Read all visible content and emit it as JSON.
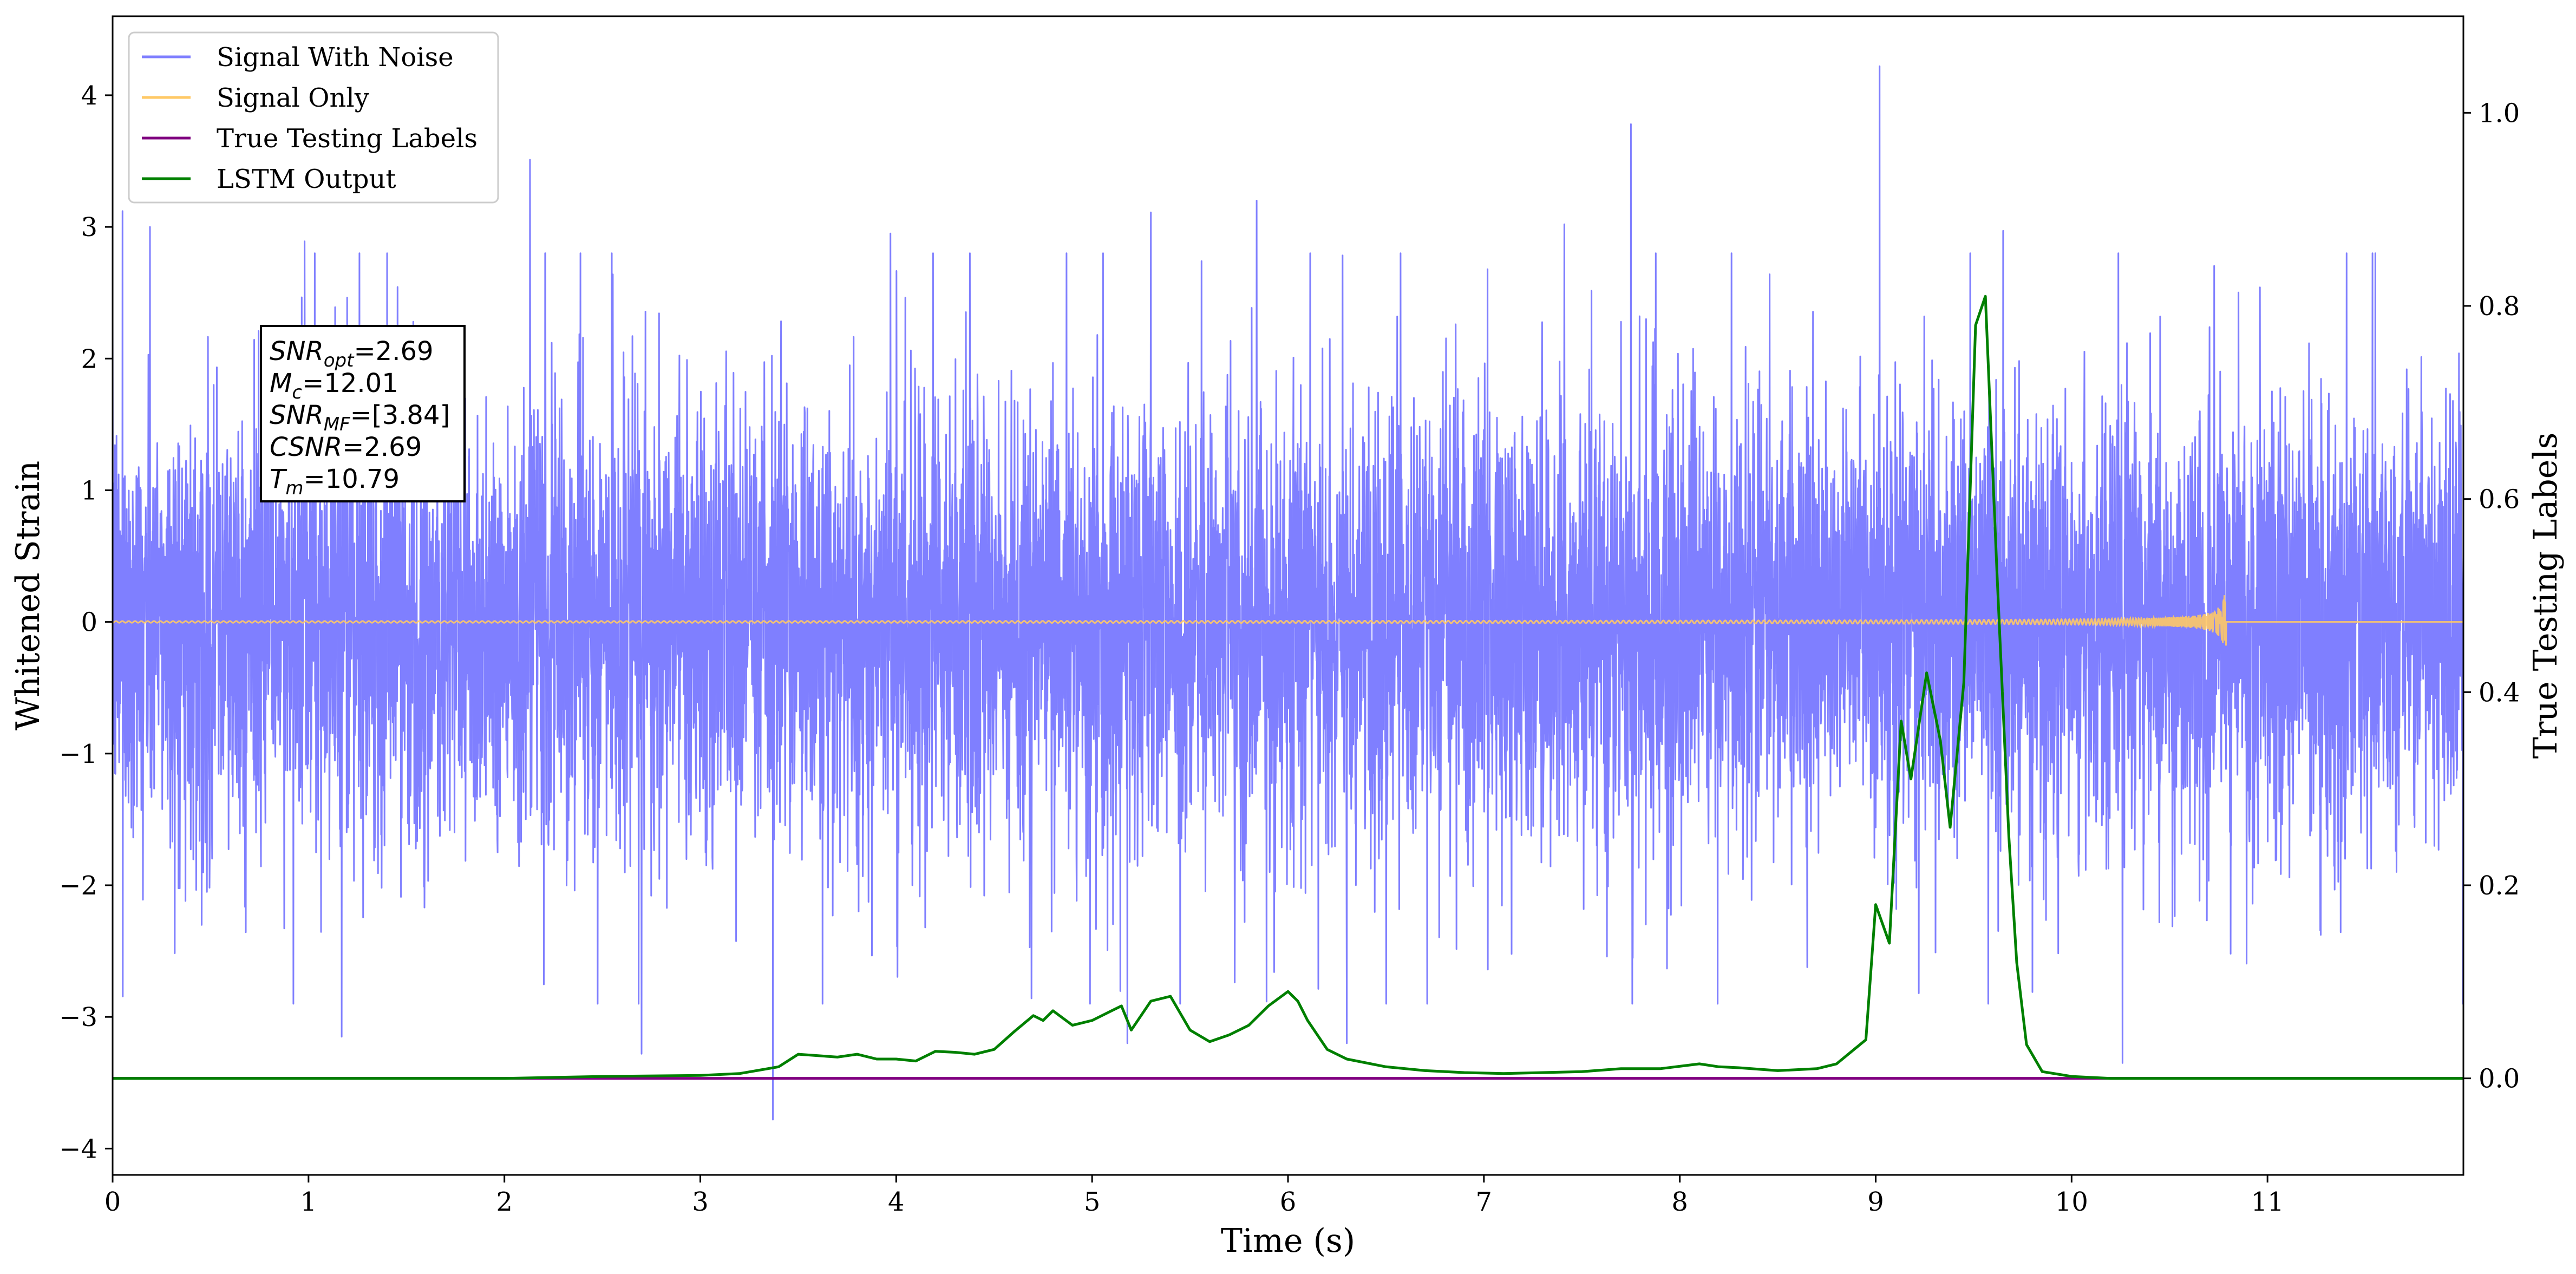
{
  "chart_data": {
    "type": "line",
    "xlabel": "Time (s)",
    "ylabel": "Whitened Strain",
    "ylabel_right": "True Testing Labels",
    "xlim": [
      0,
      12
    ],
    "ylim": [
      -4.2,
      4.6
    ],
    "ylim_right": [
      -0.1,
      1.1
    ],
    "x_ticks": [
      0,
      1,
      2,
      3,
      4,
      5,
      6,
      7,
      8,
      9,
      10,
      11
    ],
    "y_ticks": [
      -4,
      -3,
      -2,
      -1,
      0,
      1,
      2,
      3,
      4
    ],
    "y_ticks_right": [
      0.0,
      0.2,
      0.4,
      0.6,
      0.8,
      1.0
    ],
    "y_tick_labels": [
      "−4",
      "−3",
      "−2",
      "−1",
      "0",
      "1",
      "2",
      "3",
      "4"
    ],
    "y_tick_labels_right": [
      "0.0",
      "0.2",
      "0.4",
      "0.6",
      "0.8",
      "1.0"
    ],
    "x_tick_labels": [
      "0",
      "1",
      "2",
      "3",
      "4",
      "5",
      "6",
      "7",
      "8",
      "9",
      "10",
      "11"
    ],
    "grid": false,
    "legend_placement": "top-left",
    "series": [
      {
        "name": "Signal With Noise",
        "color": "#7f7fff",
        "axis": "left",
        "description_values": "gaussian noise, std approx 0.9, occasional spikes up to 4.2 near t=9.0 and down to -3.8 near t=3.37",
        "spikes": [
          [
            0.05,
            3.12
          ],
          [
            0.19,
            3.0
          ],
          [
            0.98,
            2.89
          ],
          [
            2.13,
            3.51
          ],
          [
            3.37,
            -3.78
          ],
          [
            3.97,
            2.95
          ],
          [
            5.3,
            3.11
          ],
          [
            5.84,
            3.2
          ],
          [
            7.41,
            3.02
          ],
          [
            7.75,
            3.78
          ],
          [
            9.02,
            4.22
          ],
          [
            9.65,
            2.97
          ],
          [
            10.26,
            -3.35
          ],
          [
            1.17,
            -3.15
          ],
          [
            2.7,
            -3.28
          ],
          [
            5.18,
            -3.2
          ],
          [
            6.3,
            -3.2
          ],
          [
            9.22,
            -2.82
          ]
        ]
      },
      {
        "name": "Signal Only",
        "color": "#ffc966",
        "axis": "left",
        "chirp_end": 10.79,
        "chirp_peak_amplitude": 0.3
      },
      {
        "name": "True Testing Labels",
        "color": "#800080",
        "axis": "right",
        "x": [
          0,
          12
        ],
        "y": [
          0.0,
          0.0
        ]
      },
      {
        "name": "LSTM Output",
        "color": "#008000",
        "axis": "right",
        "x": [
          0,
          0.5,
          1.0,
          1.5,
          2.0,
          2.5,
          3.0,
          3.2,
          3.4,
          3.5,
          3.7,
          3.8,
          3.9,
          4.0,
          4.1,
          4.2,
          4.3,
          4.4,
          4.5,
          4.6,
          4.7,
          4.75,
          4.8,
          4.9,
          5.0,
          5.1,
          5.15,
          5.2,
          5.3,
          5.4,
          5.5,
          5.6,
          5.7,
          5.8,
          5.9,
          6.0,
          6.05,
          6.1,
          6.2,
          6.3,
          6.5,
          6.7,
          6.9,
          7.1,
          7.3,
          7.5,
          7.7,
          7.9,
          8.1,
          8.2,
          8.3,
          8.5,
          8.7,
          8.8,
          8.95,
          9.0,
          9.07,
          9.13,
          9.18,
          9.26,
          9.33,
          9.38,
          9.45,
          9.51,
          9.56,
          9.62,
          9.68,
          9.72,
          9.77,
          9.85,
          10.0,
          10.2,
          10.5,
          11.0,
          11.5,
          12.0
        ],
        "y": [
          0.0,
          0.0,
          0.0,
          0.0,
          0.0,
          0.002,
          0.003,
          0.005,
          0.012,
          0.025,
          0.022,
          0.025,
          0.02,
          0.02,
          0.018,
          0.028,
          0.027,
          0.025,
          0.03,
          0.048,
          0.065,
          0.06,
          0.07,
          0.055,
          0.06,
          0.07,
          0.075,
          0.05,
          0.08,
          0.085,
          0.05,
          0.038,
          0.045,
          0.055,
          0.075,
          0.09,
          0.08,
          0.06,
          0.03,
          0.02,
          0.012,
          0.008,
          0.006,
          0.005,
          0.006,
          0.007,
          0.01,
          0.01,
          0.015,
          0.012,
          0.011,
          0.008,
          0.01,
          0.015,
          0.04,
          0.18,
          0.14,
          0.37,
          0.31,
          0.42,
          0.35,
          0.26,
          0.41,
          0.78,
          0.81,
          0.52,
          0.25,
          0.12,
          0.035,
          0.007,
          0.002,
          0.0,
          0.0,
          0.0,
          0.0,
          0.0
        ]
      }
    ],
    "annotation": {
      "lines": [
        {
          "label": "SNR",
          "sub": "opt",
          "value": "=2.69"
        },
        {
          "label": "M",
          "sub": "c",
          "value": "=12.01"
        },
        {
          "label": "SNR",
          "sub": "MF",
          "value": "=[3.84]"
        },
        {
          "label": "CSNR",
          "sub": "",
          "value": "=2.69"
        },
        {
          "label": "T",
          "sub": "m",
          "value": "=10.79"
        }
      ]
    }
  }
}
